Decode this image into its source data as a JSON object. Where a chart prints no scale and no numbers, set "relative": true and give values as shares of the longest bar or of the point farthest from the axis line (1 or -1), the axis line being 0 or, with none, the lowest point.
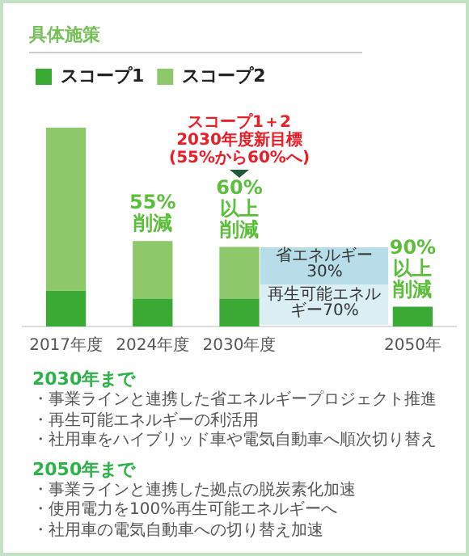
{
  "chart_data": [
    {
      "type": "bar",
      "title": "具体施策",
      "categories": [
        "2017年度",
        "2024年度",
        "2030年度",
        null,
        "2050年"
      ],
      "series": [
        {
          "name": "スコープ1",
          "color": "#3aaa35",
          "values": [
            0.18,
            0.14,
            0.14,
            null,
            0.1
          ]
        },
        {
          "name": "スコープ2",
          "color": "#8dc86a",
          "values": [
            0.82,
            0.29,
            0.26,
            null,
            0
          ]
        }
      ],
      "stacked": true,
      "relative": true,
      "legend": "top left",
      "grid": false,
      "annotations": [
        "スコープ1＋2",
        "2030年度新目標",
        "(55%から60%へ)",
        {
          "text": "60%以上削減",
          "x": "2030年度",
          "y": 0.4
        },
        {
          "text": "55%削減",
          "x": "2024年度",
          "y": 0.43
        },
        {
          "text": "90%以上削減",
          "x": "2050年",
          "y": 0.1
        },
        "省エネルギー30%",
        "再生可能エネルギー70%"
      ]
    },
    {
      "type": "other",
      "title": "2030年まで",
      "annotations": [
        "・事業ラインと連携した省エネルギープロジェクト推進",
        "・再生可能エネルギーの利活用",
        "・社用車をハイブリッド車や電気自動車へ順次切り替え"
      ]
    },
    {
      "type": "other",
      "title": "2050年まで",
      "annotations": [
        "・事業ラインと連携した拠点の脱炭素化加速",
        "・使用電力を100%再生可能エネルギーへ",
        "・社用車の電気自動車への切り替え加速"
      ]
    }
  ]
}
